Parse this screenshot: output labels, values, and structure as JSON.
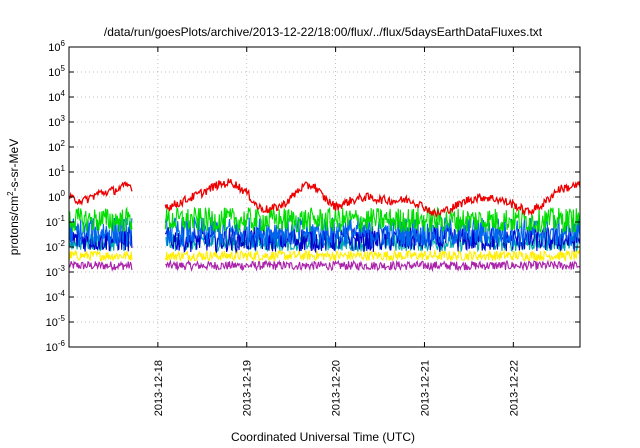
{
  "chart_data": {
    "type": "line",
    "title": "/data/run/goesPlots/archive/2013-12-22/18:00/flux/../flux/5daysEarthDataFluxes.txt",
    "xlabel": "Coordinated Universal Time (UTC)",
    "ylabel_parts": {
      "pre": "protons/cm",
      "sup": "2",
      "post": "-s-sr-MeV"
    },
    "ylabel": "protons/cm2-s-sr-MeV",
    "yscale": "log",
    "ylim": [
      1e-06,
      1000000.0
    ],
    "xlim": [
      "2013-12-17T00:00",
      "2013-12-22T18:00"
    ],
    "grid": true,
    "legend": "none",
    "y_ticks": [
      {
        "value": 1e-06,
        "base": "10",
        "exp": "-6"
      },
      {
        "value": 1e-05,
        "base": "10",
        "exp": "-5"
      },
      {
        "value": 0.0001,
        "base": "10",
        "exp": "-4"
      },
      {
        "value": 0.001,
        "base": "10",
        "exp": "-3"
      },
      {
        "value": 0.01,
        "base": "10",
        "exp": "-2"
      },
      {
        "value": 0.1,
        "base": "10",
        "exp": "-1"
      },
      {
        "value": 1,
        "base": "10",
        "exp": "0"
      },
      {
        "value": 10.0,
        "base": "10",
        "exp": "1"
      },
      {
        "value": 100.0,
        "base": "10",
        "exp": "2"
      },
      {
        "value": 1000.0,
        "base": "10",
        "exp": "3"
      },
      {
        "value": 10000.0,
        "base": "10",
        "exp": "4"
      },
      {
        "value": 100000.0,
        "base": "10",
        "exp": "5"
      },
      {
        "value": 1000000.0,
        "base": "10",
        "exp": "6"
      }
    ],
    "x_ticks": [
      {
        "value": "2013-12-18T00:00",
        "label": "2013-12-18"
      },
      {
        "value": "2013-12-19T00:00",
        "label": "2013-12-19"
      },
      {
        "value": "2013-12-20T00:00",
        "label": "2013-12-20"
      },
      {
        "value": "2013-12-21T00:00",
        "label": "2013-12-21"
      },
      {
        "value": "2013-12-22T00:00",
        "label": "2013-12-22"
      }
    ],
    "data_gap": [
      "2013-12-17T17:00",
      "2013-12-18T02:00"
    ],
    "series": [
      {
        "color": "#ee0000",
        "points": [
          [
            "2013-12-17T00:00",
            0.9
          ],
          [
            "2013-12-17T04:00",
            0.7
          ],
          [
            "2013-12-17T08:00",
            1.4
          ],
          [
            "2013-12-17T12:00",
            1.8
          ],
          [
            "2013-12-17T16:00",
            3.0
          ],
          [
            "2013-12-18T03:00",
            0.4
          ],
          [
            "2013-12-18T07:00",
            0.7
          ],
          [
            "2013-12-18T12:00",
            1.5
          ],
          [
            "2013-12-18T16:00",
            3.0
          ],
          [
            "2013-12-18T20:00",
            4.0
          ],
          [
            "2013-12-19T00:00",
            1.5
          ],
          [
            "2013-12-19T03:00",
            0.4
          ],
          [
            "2013-12-19T06:00",
            0.3
          ],
          [
            "2013-12-19T10:00",
            0.5
          ],
          [
            "2013-12-19T15:00",
            2.5
          ],
          [
            "2013-12-19T18:00",
            3.0
          ],
          [
            "2013-12-19T21:00",
            0.9
          ],
          [
            "2013-12-20T00:00",
            0.4
          ],
          [
            "2013-12-20T04:00",
            0.7
          ],
          [
            "2013-12-20T08:00",
            1.0
          ],
          [
            "2013-12-20T12:00",
            0.8
          ],
          [
            "2013-12-20T16:00",
            0.7
          ],
          [
            "2013-12-20T20:00",
            0.8
          ],
          [
            "2013-12-21T00:00",
            0.4
          ],
          [
            "2013-12-21T03:00",
            0.2
          ],
          [
            "2013-12-21T08:00",
            0.4
          ],
          [
            "2013-12-21T12:00",
            0.8
          ],
          [
            "2013-12-21T16:00",
            1.0
          ],
          [
            "2013-12-21T20:00",
            0.8
          ],
          [
            "2013-12-22T00:00",
            0.5
          ],
          [
            "2013-12-22T04:00",
            0.25
          ],
          [
            "2013-12-22T08:00",
            0.5
          ],
          [
            "2013-12-22T12:00",
            2.0
          ],
          [
            "2013-12-22T18:00",
            3.0
          ]
        ]
      },
      {
        "color": "#00dd00",
        "level": 0.12,
        "spread": 0.5
      },
      {
        "color": "#0066ee",
        "level": 0.04,
        "spread": 0.6
      },
      {
        "color": "#0000cc",
        "level": 0.02,
        "spread": 0.5
      },
      {
        "color": "#00aaaa",
        "level": 0.015,
        "spread": 0.35
      },
      {
        "color": "#ffee00",
        "level": 0.0045,
        "spread": 0.2
      },
      {
        "color": "#aa22aa",
        "level": 0.0018,
        "spread": 0.18
      }
    ]
  }
}
